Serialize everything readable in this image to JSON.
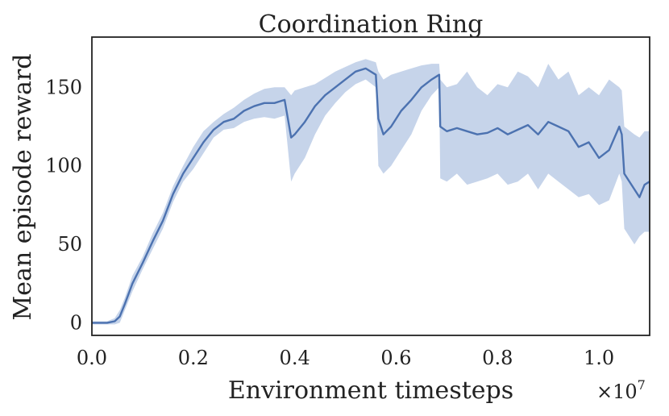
{
  "chart_data": {
    "type": "line",
    "title": "Coordination Ring",
    "xlabel": "Environment timesteps",
    "ylabel": "Mean episode reward",
    "x_offset_label": "×10",
    "x_offset_exponent": "7",
    "xlim": [
      0.0,
      1.1
    ],
    "ylim": [
      -8,
      182
    ],
    "x_ticks": [
      0.0,
      0.2,
      0.4,
      0.6,
      0.8,
      1.0
    ],
    "x_tick_labels": [
      "0.0",
      "0.2",
      "0.4",
      "0.6",
      "0.8",
      "1.0"
    ],
    "y_ticks": [
      0,
      50,
      100,
      150
    ],
    "y_tick_labels": [
      "0",
      "50",
      "100",
      "150"
    ],
    "grid": false,
    "series": [
      {
        "color": "#4c72b0",
        "band_color": "#c6d4ea",
        "x": [
          0.0,
          0.03,
          0.045,
          0.055,
          0.065,
          0.08,
          0.1,
          0.12,
          0.14,
          0.16,
          0.18,
          0.2,
          0.22,
          0.24,
          0.26,
          0.28,
          0.3,
          0.32,
          0.34,
          0.36,
          0.38,
          0.393,
          0.4,
          0.42,
          0.44,
          0.46,
          0.48,
          0.5,
          0.52,
          0.54,
          0.56,
          0.565,
          0.575,
          0.59,
          0.61,
          0.63,
          0.65,
          0.67,
          0.685,
          0.687,
          0.7,
          0.72,
          0.74,
          0.76,
          0.78,
          0.8,
          0.82,
          0.84,
          0.86,
          0.88,
          0.9,
          0.92,
          0.94,
          0.96,
          0.98,
          1.0,
          1.02,
          1.04,
          1.045,
          1.05,
          1.07,
          1.08,
          1.09,
          1.1
        ],
        "y": [
          0,
          0,
          1,
          4,
          12,
          25,
          38,
          52,
          65,
          82,
          95,
          105,
          115,
          123,
          128,
          130,
          135,
          138,
          140,
          140,
          142,
          118,
          120,
          128,
          138,
          145,
          150,
          155,
          160,
          162,
          158,
          130,
          120,
          125,
          135,
          142,
          150,
          155,
          158,
          125,
          122,
          124,
          122,
          120,
          121,
          124,
          120,
          123,
          126,
          120,
          128,
          125,
          122,
          112,
          115,
          105,
          110,
          125,
          120,
          95,
          85,
          80,
          88,
          90
        ],
        "upper": [
          1,
          1,
          3,
          8,
          16,
          30,
          42,
          57,
          70,
          87,
          100,
          112,
          122,
          128,
          133,
          137,
          142,
          146,
          149,
          150,
          150,
          145,
          148,
          150,
          152,
          156,
          160,
          163,
          166,
          168,
          166,
          160,
          155,
          158,
          160,
          162,
          164,
          165,
          165,
          155,
          150,
          152,
          160,
          150,
          145,
          152,
          150,
          160,
          157,
          150,
          165,
          155,
          160,
          145,
          150,
          145,
          155,
          150,
          148,
          125,
          120,
          118,
          122,
          122
        ],
        "lower": [
          -1,
          -1,
          -1,
          0,
          8,
          20,
          34,
          47,
          60,
          77,
          90,
          98,
          108,
          118,
          123,
          124,
          128,
          130,
          131,
          130,
          132,
          90,
          95,
          105,
          120,
          132,
          140,
          147,
          152,
          155,
          150,
          100,
          95,
          100,
          110,
          120,
          135,
          145,
          150,
          92,
          90,
          95,
          88,
          90,
          92,
          95,
          88,
          90,
          95,
          85,
          95,
          90,
          85,
          80,
          82,
          75,
          78,
          95,
          90,
          60,
          50,
          55,
          58,
          58
        ]
      }
    ]
  }
}
